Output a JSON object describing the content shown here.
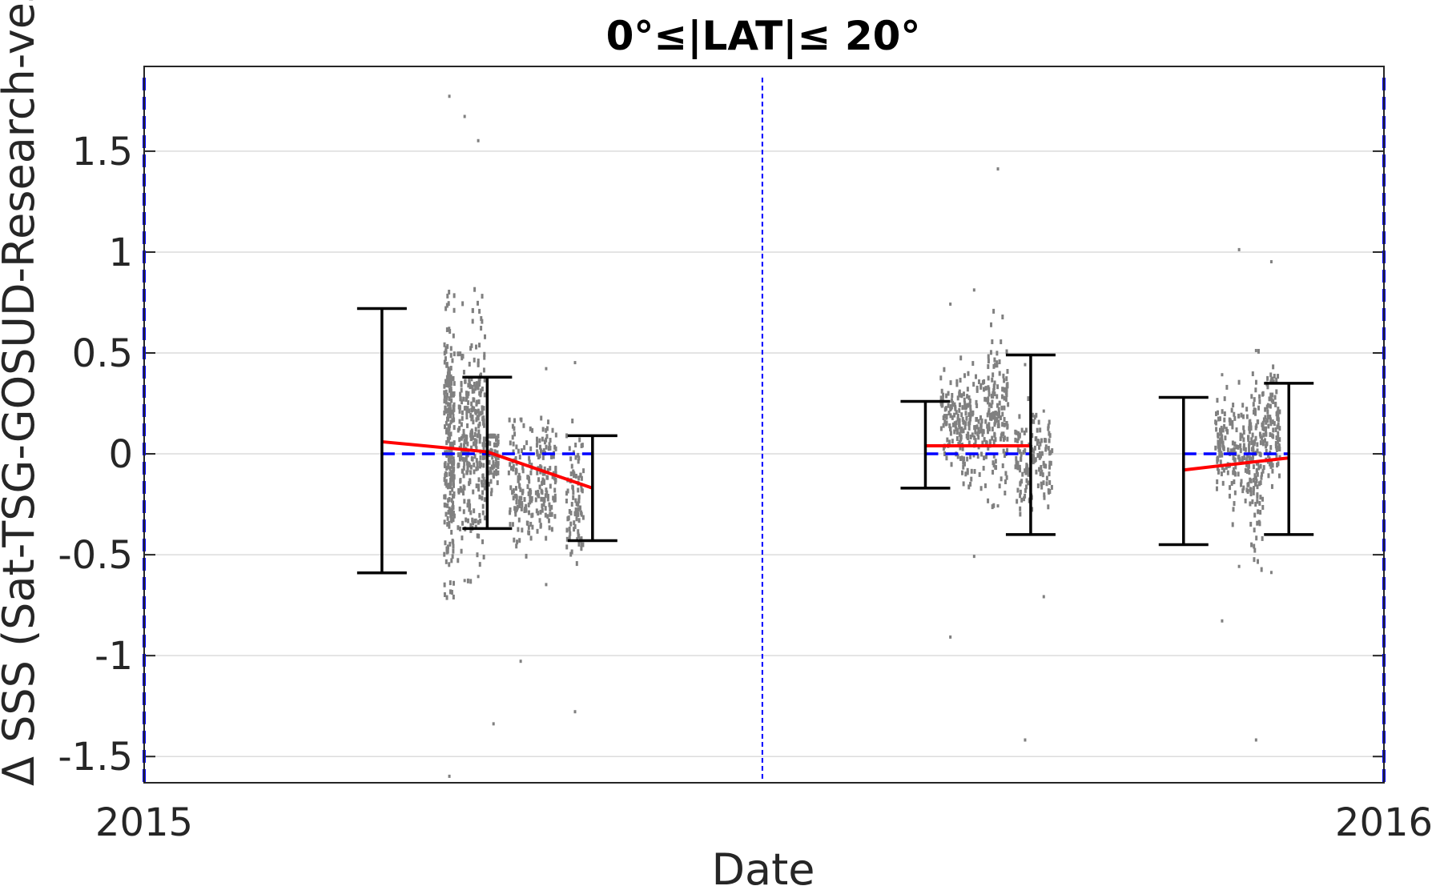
{
  "chart_data": {
    "type": "scatter",
    "title": "0°≤|LAT|≤ 20°",
    "xlabel": "Date",
    "ylabel": "Δ SSS (Sat-TSG-GOSUD-Research-vessel)",
    "x_ticks": [
      "2015",
      "2016"
    ],
    "xlim": [
      "2015-01-01",
      "2016-01-01"
    ],
    "ylim": [
      -1.63,
      1.92
    ],
    "y_ticks": [
      -1.5,
      -1,
      -0.5,
      0,
      0.5,
      1,
      1.5
    ],
    "grid": true,
    "colors": {
      "points": "#808080",
      "trend": "#ff0000",
      "zero_ref": "#0000ff",
      "separator": "#0000ff",
      "error_bars": "#000000",
      "grid": "#dcdcdc"
    },
    "separators": [
      "2015-01-01",
      "2015-07-02",
      "2016-01-01"
    ],
    "groups": [
      {
        "error_bars": [
          {
            "x": "2015-03-12",
            "low": -0.59,
            "high": 0.72
          },
          {
            "x": "2015-04-12",
            "low": -0.37,
            "high": 0.38
          },
          {
            "x": "2015-05-13",
            "low": -0.43,
            "high": 0.09
          }
        ],
        "trend": [
          {
            "x": "2015-03-12",
            "y": 0.06
          },
          {
            "x": "2015-04-12",
            "y": 0.01
          },
          {
            "x": "2015-05-13",
            "y": -0.17
          }
        ],
        "zero_ref": [
          "2015-03-12",
          "2015-05-13"
        ],
        "scatter_clusters": [
          {
            "x_start": "2015-03-30",
            "x_end": "2015-04-02",
            "center": 0.05,
            "spread": 0.55,
            "count": 240,
            "max": 1.78,
            "min": -1.59
          },
          {
            "x_start": "2015-04-03",
            "x_end": "2015-04-07",
            "center": 0.05,
            "spread": 0.45,
            "count": 140,
            "max": 1.68,
            "min": -0.62
          },
          {
            "x_start": "2015-04-07",
            "x_end": "2015-04-11",
            "center": 0.1,
            "spread": 0.5,
            "count": 160,
            "max": 1.56,
            "min": -0.6
          },
          {
            "x_start": "2015-04-12",
            "x_end": "2015-04-15",
            "center": 0.0,
            "spread": 0.15,
            "count": 60,
            "max": 0.1,
            "min": -1.33
          },
          {
            "x_start": "2015-04-18",
            "x_end": "2015-04-25",
            "center": -0.15,
            "spread": 0.25,
            "count": 120,
            "max": 0.18,
            "min": -1.02
          },
          {
            "x_start": "2015-04-26",
            "x_end": "2015-05-02",
            "center": -0.1,
            "spread": 0.22,
            "count": 110,
            "max": 0.43,
            "min": -0.64
          },
          {
            "x_start": "2015-05-05",
            "x_end": "2015-05-10",
            "center": -0.2,
            "spread": 0.28,
            "count": 90,
            "max": 0.46,
            "min": -1.27
          }
        ]
      },
      {
        "error_bars": [
          {
            "x": "2015-08-19",
            "low": -0.17,
            "high": 0.26
          },
          {
            "x": "2015-09-19",
            "low": -0.4,
            "high": 0.49
          }
        ],
        "trend": [
          {
            "x": "2015-08-19",
            "y": 0.04
          },
          {
            "x": "2015-09-19",
            "y": 0.04
          }
        ],
        "zero_ref": [
          "2015-08-19",
          "2015-09-19"
        ],
        "scatter_clusters": [
          {
            "x_start": "2015-08-23",
            "x_end": "2015-08-29",
            "center": 0.2,
            "spread": 0.2,
            "count": 90,
            "max": 0.75,
            "min": -0.9
          },
          {
            "x_start": "2015-08-29",
            "x_end": "2015-09-06",
            "center": 0.15,
            "spread": 0.25,
            "count": 130,
            "max": 0.82,
            "min": -0.5
          },
          {
            "x_start": "2015-09-06",
            "x_end": "2015-09-12",
            "center": 0.2,
            "spread": 0.3,
            "count": 140,
            "max": 1.42,
            "min": -0.25
          },
          {
            "x_start": "2015-09-14",
            "x_end": "2015-09-20",
            "center": 0.0,
            "spread": 0.2,
            "count": 80,
            "max": 0.45,
            "min": -1.41
          },
          {
            "x_start": "2015-09-20",
            "x_end": "2015-09-25",
            "center": 0.0,
            "spread": 0.18,
            "count": 60,
            "max": 0.22,
            "min": -0.7
          }
        ]
      },
      {
        "error_bars": [
          {
            "x": "2015-11-03",
            "low": -0.45,
            "high": 0.28
          },
          {
            "x": "2015-12-04",
            "low": -0.4,
            "high": 0.35
          }
        ],
        "trend": [
          {
            "x": "2015-11-03",
            "y": -0.08
          },
          {
            "x": "2015-12-04",
            "y": -0.02
          }
        ],
        "zero_ref": [
          "2015-11-03",
          "2015-12-04"
        ],
        "scatter_clusters": [
          {
            "x_start": "2015-11-12",
            "x_end": "2015-11-16",
            "center": 0.05,
            "spread": 0.2,
            "count": 70,
            "max": 0.4,
            "min": -0.82
          },
          {
            "x_start": "2015-11-16",
            "x_end": "2015-11-22",
            "center": 0.0,
            "spread": 0.22,
            "count": 90,
            "max": 1.02,
            "min": -0.55
          },
          {
            "x_start": "2015-11-22",
            "x_end": "2015-11-26",
            "center": -0.05,
            "spread": 0.35,
            "count": 110,
            "max": 0.52,
            "min": -1.41
          },
          {
            "x_start": "2015-11-26",
            "x_end": "2015-12-01",
            "center": 0.15,
            "spread": 0.25,
            "count": 110,
            "max": 0.96,
            "min": -0.58
          }
        ]
      }
    ]
  }
}
